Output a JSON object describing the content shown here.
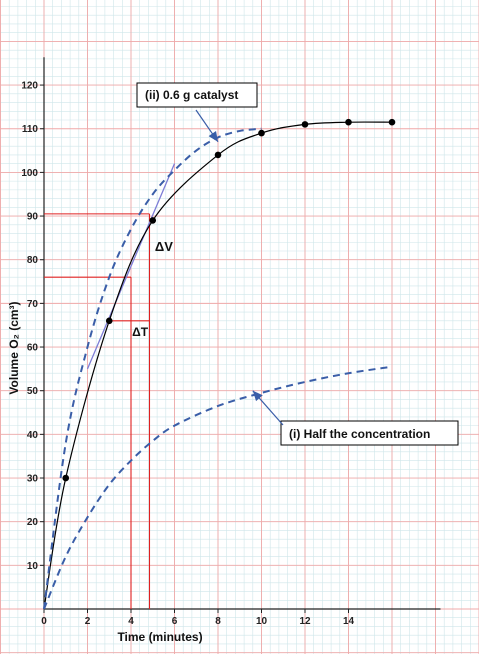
{
  "chart_data": {
    "type": "line",
    "title": "",
    "xlabel": "Time (minutes)",
    "ylabel": "Volume O₂ (cm³)",
    "xlim": [
      0,
      18
    ],
    "ylim": [
      0,
      125
    ],
    "x_ticks": [
      0,
      2,
      4,
      6,
      8,
      10,
      12,
      14
    ],
    "y_ticks": [
      10,
      20,
      30,
      40,
      50,
      60,
      70,
      80,
      90,
      100,
      110,
      120
    ],
    "grid": true,
    "series": [
      {
        "name": "",
        "style": "solid-with-points",
        "color": "#000000",
        "points": [
          [
            0,
            0
          ],
          [
            1,
            30
          ],
          [
            3,
            66
          ],
          [
            5,
            89
          ],
          [
            8,
            104
          ],
          [
            10,
            109
          ],
          [
            12,
            111
          ],
          [
            14,
            111.5
          ],
          [
            16,
            111.5
          ]
        ]
      },
      {
        "name": "(ii) 0.6 g catalyst",
        "style": "dashed",
        "color": "#3a5ea8",
        "points": [
          [
            0,
            0
          ],
          [
            1,
            38
          ],
          [
            2,
            60
          ],
          [
            3,
            76
          ],
          [
            4,
            87
          ],
          [
            5,
            95
          ],
          [
            6,
            100.5
          ],
          [
            7,
            105
          ],
          [
            8,
            108
          ],
          [
            9,
            109.5
          ],
          [
            10,
            110
          ]
        ]
      },
      {
        "name": "(i) Half the concentration",
        "style": "dashed",
        "color": "#3a5ea8",
        "points": [
          [
            0,
            0
          ],
          [
            1,
            12
          ],
          [
            2,
            21
          ],
          [
            3,
            28.5
          ],
          [
            4,
            34
          ],
          [
            5,
            38.5
          ],
          [
            6,
            42
          ],
          [
            8,
            46.5
          ],
          [
            10,
            49.5
          ],
          [
            12,
            52
          ],
          [
            14,
            54
          ],
          [
            16,
            55.5
          ]
        ]
      }
    ],
    "tangent": {
      "from": [
        2,
        55
      ],
      "to": [
        6,
        102
      ],
      "color": "#7d7dd6"
    },
    "guides": {
      "color": "#e02020",
      "v_label": "ΔV",
      "t_label": "ΔT",
      "horizontal": [
        {
          "y": 90.5,
          "x_from": 0,
          "x_to": 4.85
        },
        {
          "y": 76,
          "x_from": 0,
          "x_to": 4
        },
        {
          "y": 66,
          "x_from": 3,
          "x_to": 4.85
        }
      ],
      "vertical": [
        {
          "x": 4,
          "y_from": 0,
          "y_to": 76
        },
        {
          "x": 4.85,
          "y_from": 0,
          "y_to": 90.5
        }
      ]
    },
    "annotations": [
      {
        "label": "(ii) 0.6 g catalyst",
        "arrow_to": [
          8,
          107
        ]
      },
      {
        "label": "(i) Half the concentration",
        "arrow_to": [
          9.6,
          50
        ]
      }
    ]
  }
}
